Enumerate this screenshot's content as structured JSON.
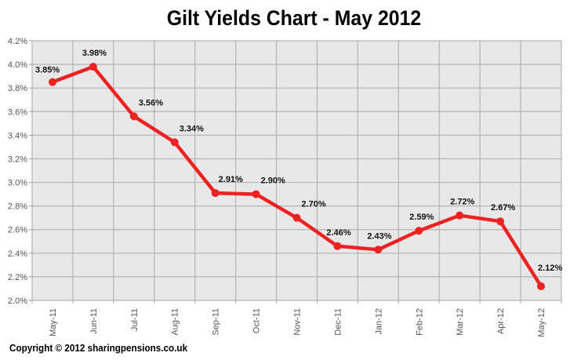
{
  "chart_data": {
    "type": "line",
    "title": "Gilt Yields Chart - May 2012",
    "xlabel": "",
    "ylabel": "",
    "categories": [
      "May-11",
      "Jun-11",
      "Jul-11",
      "Aug-11",
      "Sep-11",
      "Oct-11",
      "Nov-11",
      "Dec-11",
      "Jan-12",
      "Feb-12",
      "Mar-12",
      "Apr-12",
      "May-12"
    ],
    "series": [
      {
        "name": "Gilt Yield",
        "color": "#ee2222",
        "values": [
          3.85,
          3.98,
          3.56,
          3.34,
          2.91,
          2.9,
          2.7,
          2.46,
          2.43,
          2.59,
          2.72,
          2.67,
          2.12
        ],
        "labels": [
          "3.85%",
          "3.98%",
          "3.56%",
          "3.34%",
          "2.91%",
          "2.90%",
          "2.70%",
          "2.46%",
          "2.43%",
          "2.59%",
          "2.72%",
          "2.67%",
          "2.12%"
        ]
      }
    ],
    "ylim": [
      2.0,
      4.2
    ],
    "yticks": [
      "2.0%",
      "2.2%",
      "2.4%",
      "2.6%",
      "2.8%",
      "3.0%",
      "3.2%",
      "3.4%",
      "3.6%",
      "3.8%",
      "4.0%",
      "4.2%"
    ],
    "grid": true,
    "legend": "none",
    "plot_background": "#e8e8e8",
    "gridline_color": "#b4b4b4"
  },
  "footer": {
    "copyright": "Copyright © 2012 sharingpensions.co.uk"
  }
}
